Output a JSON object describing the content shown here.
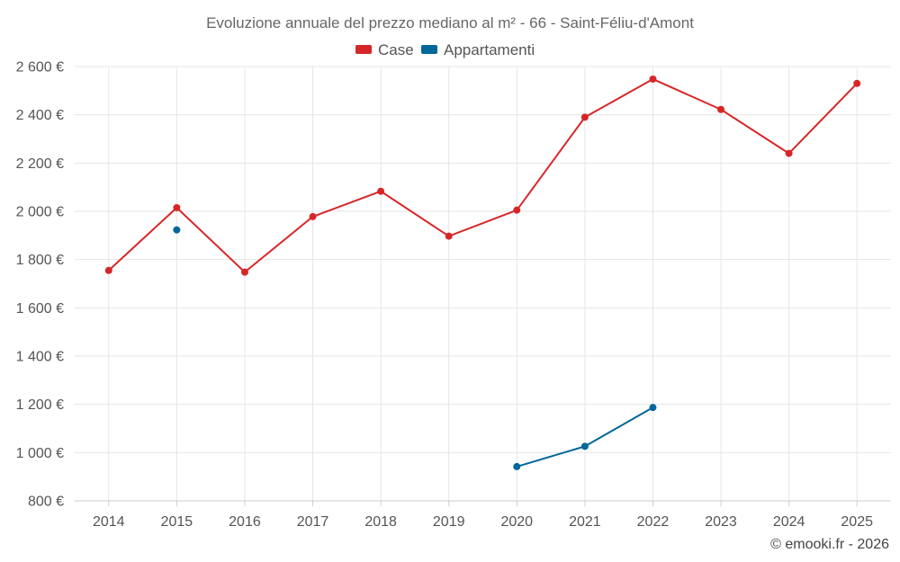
{
  "chart_data": {
    "type": "line",
    "title": "Evoluzione annuale del prezzo mediano al m² - 66 - Saint-Féliu-d'Amont",
    "xlabel": "",
    "ylabel": "",
    "categories": [
      "2014",
      "2015",
      "2016",
      "2017",
      "2018",
      "2019",
      "2020",
      "2021",
      "2022",
      "2023",
      "2024",
      "2025"
    ],
    "ylim": [
      800,
      2600
    ],
    "yticks": [
      800,
      1000,
      1200,
      1400,
      1600,
      1800,
      2000,
      2200,
      2400,
      2600
    ],
    "ytick_labels": [
      "800 €",
      "1 000 €",
      "1 200 €",
      "1 400 €",
      "1 600 €",
      "1 800 €",
      "2 000 €",
      "2 200 €",
      "2 400 €",
      "2 600 €"
    ],
    "grid": true,
    "legend_position": "top-center",
    "series": [
      {
        "name": "Case",
        "color": "#d62728",
        "values": [
          1755,
          2015,
          1748,
          1978,
          2083,
          1897,
          2005,
          2390,
          2548,
          2422,
          2240,
          2530
        ]
      },
      {
        "name": "Appartamenti",
        "color": "#02679a",
        "values": [
          null,
          1923,
          null,
          null,
          null,
          null,
          942,
          1026,
          1187,
          null,
          null,
          null
        ]
      }
    ]
  },
  "credit": "© emooki.fr - 2026"
}
